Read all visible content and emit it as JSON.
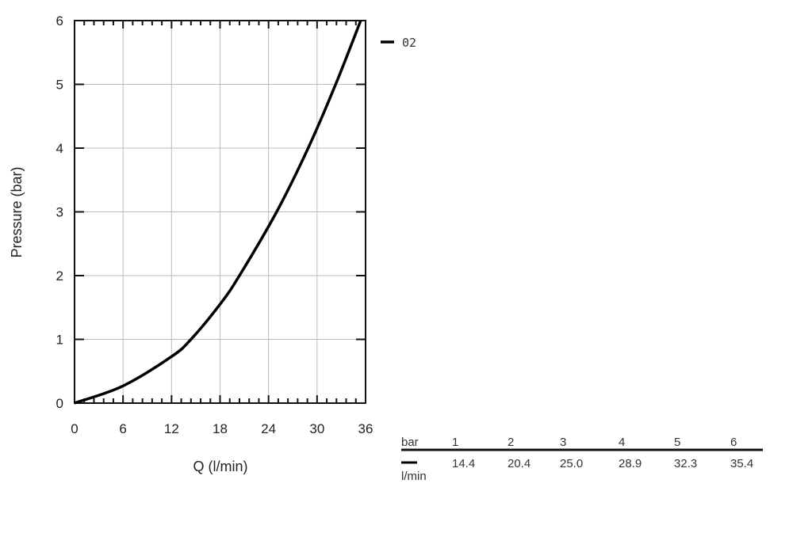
{
  "chart_data": {
    "type": "line",
    "xlabel": "Q (l/min)",
    "ylabel": "Pressure (bar)",
    "xlim": [
      0,
      36
    ],
    "ylim": [
      0,
      6
    ],
    "xticks": [
      "0",
      "6",
      "12",
      "18",
      "24",
      "30",
      "36"
    ],
    "yticks": [
      "0",
      "1",
      "2",
      "3",
      "4",
      "5",
      "6"
    ],
    "grid": true,
    "legend_placement": "top-right outside",
    "series": [
      {
        "name": "02",
        "color": "#000000",
        "x": [
          0,
          6,
          12,
          14.4,
          18,
          20.4,
          25.0,
          28.9,
          32.3,
          35.4
        ],
        "y": [
          0,
          0.27,
          0.73,
          1,
          1.55,
          2,
          3,
          4,
          5,
          6
        ]
      }
    ],
    "table": {
      "header_label": "bar",
      "row_label": "l/min",
      "pressures": [
        "1",
        "2",
        "3",
        "4",
        "5",
        "6"
      ],
      "flows": [
        "14.4",
        "20.4",
        "25.0",
        "28.9",
        "32.3",
        "35.4"
      ]
    }
  }
}
